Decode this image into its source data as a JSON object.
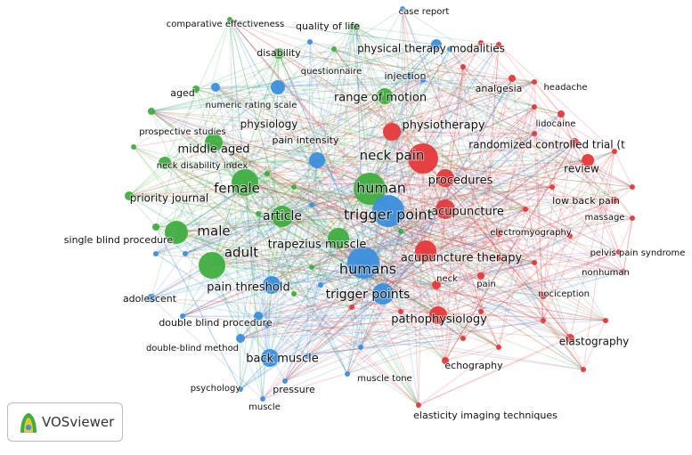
{
  "clusters": [
    {
      "color": "#e5393b"
    },
    {
      "color": "#3fae3f"
    },
    {
      "color": "#3b8fdc"
    }
  ],
  "nodes": [
    {
      "label": "comparative effectiveness"
    },
    {
      "label": "quality of life"
    },
    {
      "label": "disability"
    },
    {
      "label": "questionnaire"
    },
    {
      "label": "aged"
    },
    {
      "label": "numeric rating scale"
    },
    {
      "label": "range of motion"
    },
    {
      "label": "physiology"
    },
    {
      "label": "prospective studies"
    },
    {
      "label": "middle aged"
    },
    {
      "label": "neck disability index"
    },
    {
      "label": "female"
    },
    {
      "label": "priority journal"
    },
    {
      "label": "male"
    },
    {
      "label": "article"
    },
    {
      "label": "adult"
    },
    {
      "label": "single blind procedure"
    },
    {
      "label": "trapezius muscle"
    },
    {
      "label": "human"
    },
    {
      "label": "physiotherapy"
    },
    {
      "label": "neck pain"
    },
    {
      "label": "analgesia"
    },
    {
      "label": "headache"
    },
    {
      "label": "lidocaine"
    },
    {
      "label": "randomized controlled trial (t"
    },
    {
      "label": "review"
    },
    {
      "label": "procedures"
    },
    {
      "label": "low back pain"
    },
    {
      "label": "acupuncture"
    },
    {
      "label": "massage"
    },
    {
      "label": "electromyography"
    },
    {
      "label": "pelvis pain syndrome"
    },
    {
      "label": "acupuncture therapy"
    },
    {
      "label": "nonhuman"
    },
    {
      "label": "neck"
    },
    {
      "label": "pain"
    },
    {
      "label": "nociception"
    },
    {
      "label": "pathophysiology"
    },
    {
      "label": "elastography"
    },
    {
      "label": "echography"
    },
    {
      "label": "elasticity imaging techniques"
    },
    {
      "label": "case report"
    },
    {
      "label": "physical therapy modalities"
    },
    {
      "label": "injection"
    },
    {
      "label": "pain intensity"
    },
    {
      "label": "trigger point"
    },
    {
      "label": "humans"
    },
    {
      "label": "trigger points"
    },
    {
      "label": "pain threshold"
    },
    {
      "label": "adolescent"
    },
    {
      "label": "double blind procedure"
    },
    {
      "label": "double-blind method"
    },
    {
      "label": "back muscle"
    },
    {
      "label": "muscle tone"
    },
    {
      "label": "psychology"
    },
    {
      "label": "pressure"
    },
    {
      "label": "muscle"
    }
  ],
  "logo": "VOSviewer"
}
